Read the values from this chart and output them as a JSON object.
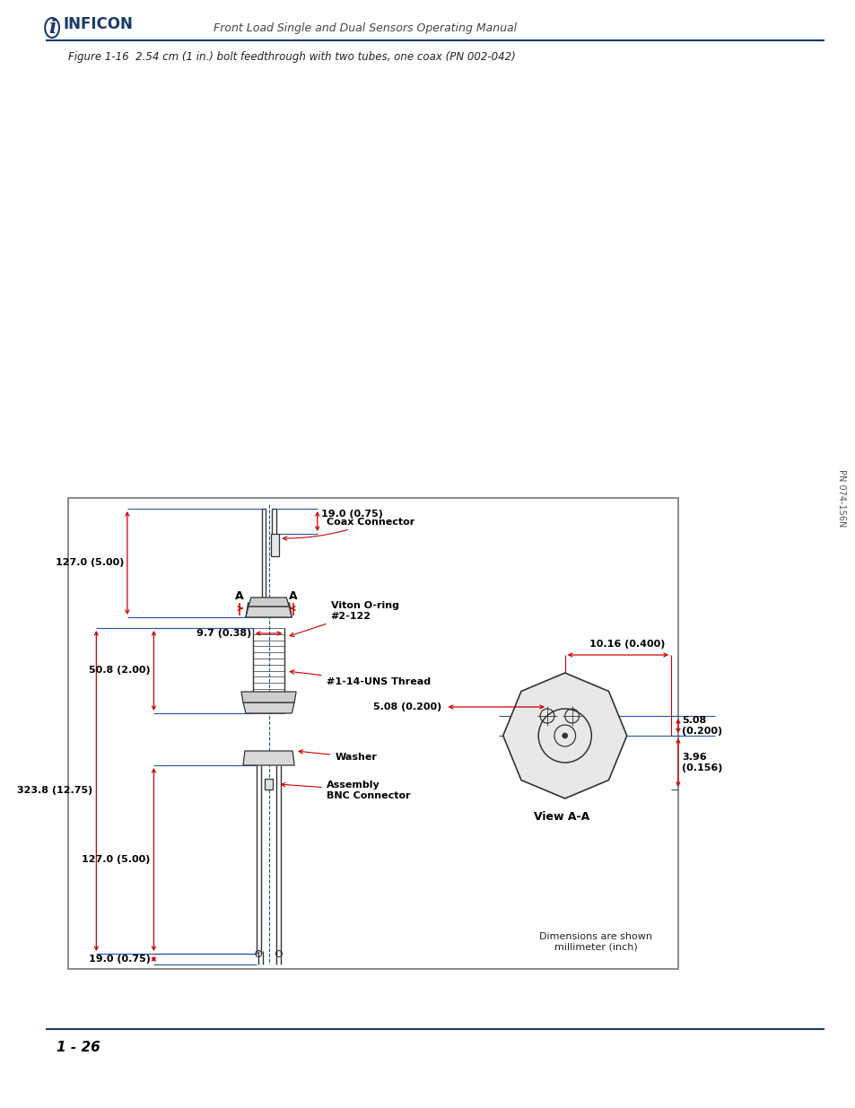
{
  "page_bg": "#ffffff",
  "header_line_color": "#1a3a6b",
  "footer_line_color": "#1a3a6b",
  "inficon_color": "#1a3a6b",
  "header_title": "Front Load Single and Dual Sensors Operating Manual",
  "figure_caption": "Figure 1-16  2.54 cm (1 in.) bolt feedthrough with two tubes, one coax (PN 002-042)",
  "page_number": "1 - 26",
  "pn_text": "PN 074-156N",
  "red": "#cc0000",
  "blue": "#2255aa",
  "dark": "#333333",
  "med": "#555555"
}
